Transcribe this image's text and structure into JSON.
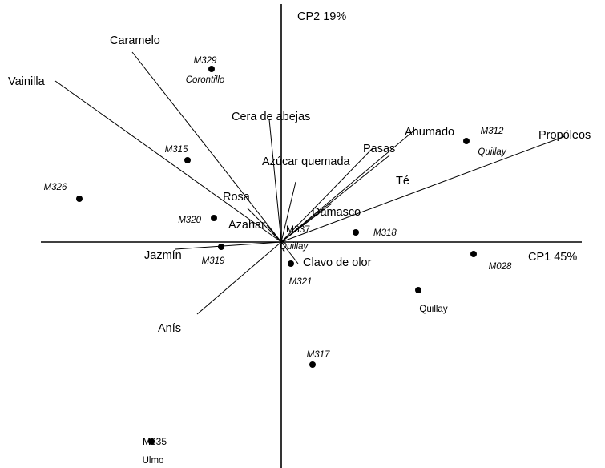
{
  "chart_data": {
    "type": "scatter",
    "title": "",
    "axes": {
      "x_label": "CP1 45%",
      "y_label": "CP2 19%",
      "xlim": [
        -1.0,
        1.25
      ],
      "ylim": [
        -0.95,
        0.99
      ],
      "origin_label": "M337",
      "origin_sublabel": "Quillay"
    },
    "loadings": [
      {
        "name": "Caramelo",
        "x": -0.62,
        "y": 0.79
      },
      {
        "name": "Vainilla",
        "x": -0.94,
        "y": 0.67
      },
      {
        "name": "Cera de abejas",
        "x": -0.05,
        "y": 0.51
      },
      {
        "name": "Rosa",
        "x": -0.14,
        "y": 0.14
      },
      {
        "name": "Azahar",
        "x": -0.06,
        "y": 0.07
      },
      {
        "name": "Azúcar quemada",
        "x": 0.06,
        "y": 0.25
      },
      {
        "name": "Pasas",
        "x": 0.38,
        "y": 0.39
      },
      {
        "name": "Ahumado",
        "x": 0.56,
        "y": 0.47
      },
      {
        "name": "Té",
        "x": 0.45,
        "y": 0.36
      },
      {
        "name": "Damasco",
        "x": 0.21,
        "y": 0.16
      },
      {
        "name": "Propóleos",
        "x": 1.18,
        "y": 0.44
      },
      {
        "name": "Jazmín",
        "x": -0.44,
        "y": -0.03
      },
      {
        "name": "Anís",
        "x": -0.35,
        "y": -0.3
      },
      {
        "name": "Clavo de olor",
        "x": 0.07,
        "y": -0.09
      }
    ],
    "samples": [
      {
        "name": "M329",
        "sublabel": "Corontillo",
        "x": -0.29,
        "y": 0.72
      },
      {
        "name": "M315",
        "sublabel": "",
        "x": -0.39,
        "y": 0.34
      },
      {
        "name": "M326",
        "sublabel": "",
        "x": -0.84,
        "y": 0.18
      },
      {
        "name": "M320",
        "sublabel": "",
        "x": -0.28,
        "y": 0.1
      },
      {
        "name": "M319",
        "sublabel": "",
        "x": -0.25,
        "y": -0.02
      },
      {
        "name": "M321",
        "sublabel": "",
        "x": 0.04,
        "y": -0.09
      },
      {
        "name": "M318",
        "sublabel": "",
        "x": 0.31,
        "y": 0.04
      },
      {
        "name": "M312",
        "sublabel": "Quillay",
        "x": 0.77,
        "y": 0.42
      },
      {
        "name": "M028",
        "sublabel": "",
        "x": 0.8,
        "y": -0.05
      },
      {
        "name": "",
        "sublabel": "Quillay",
        "x": 0.57,
        "y": -0.2
      },
      {
        "name": "M317",
        "sublabel": "",
        "x": 0.13,
        "y": -0.51
      },
      {
        "name": "M335",
        "sublabel": "Ulmo",
        "x": -0.54,
        "y": -0.83
      }
    ]
  }
}
